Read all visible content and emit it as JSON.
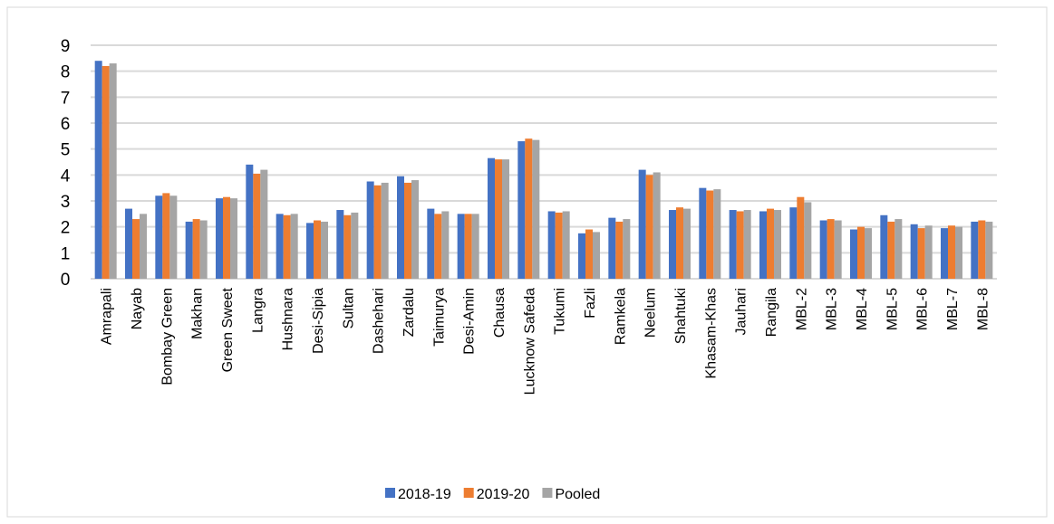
{
  "chart_data": {
    "type": "bar",
    "categories": [
      "Amrapali",
      "Nayab",
      "Bombay Green",
      "Makhan",
      "Green Sweet",
      "Langra",
      "Hushnara",
      "Desi-Sipia",
      "Sultan",
      "Dashehari",
      "Zardalu",
      "Taimurya",
      "Desi-Amin",
      "Chausa",
      "Lucknow Safeda",
      "Tukumi",
      "Fazli",
      "Ramkela",
      "Neelum",
      "Shahtuki",
      "Khasam-Khas",
      "Jauhari",
      "Rangila",
      "MBL-2",
      "MBL-3",
      "MBL-4",
      "MBL-5",
      "MBL-6",
      "MBL-7",
      "MBL-8"
    ],
    "series": [
      {
        "name": "2018-19",
        "color": "#4472c4",
        "values": [
          8.4,
          2.7,
          3.2,
          2.2,
          3.1,
          4.4,
          2.5,
          2.15,
          2.65,
          3.75,
          3.95,
          2.7,
          2.5,
          4.65,
          5.3,
          2.6,
          1.75,
          2.35,
          4.2,
          2.65,
          3.5,
          2.65,
          2.6,
          2.75,
          2.25,
          1.9,
          2.45,
          2.1,
          1.95,
          2.2
        ]
      },
      {
        "name": "2019-20",
        "color": "#ed7d31",
        "values": [
          8.2,
          2.3,
          3.3,
          2.3,
          3.15,
          4.05,
          2.45,
          2.25,
          2.45,
          3.6,
          3.7,
          2.5,
          2.5,
          4.6,
          5.4,
          2.55,
          1.9,
          2.2,
          4.0,
          2.75,
          3.4,
          2.6,
          2.7,
          3.15,
          2.3,
          2.0,
          2.2,
          1.95,
          2.05,
          2.25
        ]
      },
      {
        "name": "Pooled",
        "color": "#a5a5a5",
        "values": [
          8.3,
          2.5,
          3.2,
          2.25,
          3.1,
          4.2,
          2.5,
          2.2,
          2.55,
          3.7,
          3.8,
          2.6,
          2.5,
          4.6,
          5.35,
          2.6,
          1.8,
          2.3,
          4.1,
          2.7,
          3.45,
          2.65,
          2.65,
          2.95,
          2.25,
          1.95,
          2.3,
          2.05,
          2.0,
          2.2
        ]
      }
    ],
    "ylim": [
      0,
      9
    ],
    "yticks": [
      0,
      1,
      2,
      3,
      4,
      5,
      6,
      7,
      8,
      9
    ],
    "grid": true,
    "legend": "bottom"
  }
}
